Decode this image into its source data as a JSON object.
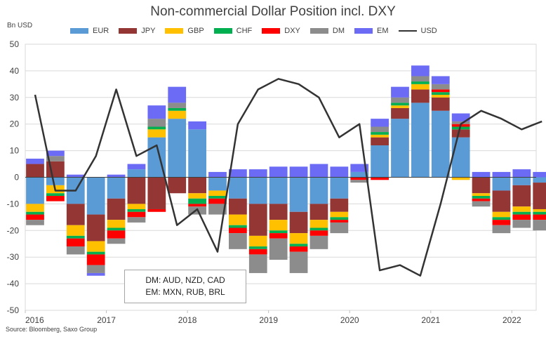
{
  "title": "Non-commercial Dollar Position incl. DXY",
  "unit_label": "Bn USD",
  "source": "Source: Bloomberg, Saxo Group",
  "note_lines": [
    "DM: AUD, NZD, CAD",
    "EM: MXN, RUB, BRL"
  ],
  "colors": {
    "EUR": "#5b9bd5",
    "JPY": "#943634",
    "GBP": "#ffc000",
    "CHF": "#00b050",
    "DXY": "#ff0000",
    "DM": "#8c8c8c",
    "EM": "#6b6bf5",
    "USD": "#333333"
  },
  "legend": [
    {
      "key": "EUR",
      "label": "EUR",
      "kind": "bar"
    },
    {
      "key": "JPY",
      "label": "JPY",
      "kind": "bar"
    },
    {
      "key": "GBP",
      "label": "GBP",
      "kind": "bar"
    },
    {
      "key": "CHF",
      "label": "CHF",
      "kind": "bar"
    },
    {
      "key": "DXY",
      "label": "DXY",
      "kind": "bar"
    },
    {
      "key": "DM",
      "label": "DM",
      "kind": "bar"
    },
    {
      "key": "EM",
      "label": "EM",
      "kind": "bar"
    },
    {
      "key": "USD",
      "label": "USD",
      "kind": "line"
    }
  ],
  "chart_data": {
    "type": "area",
    "title": "Non-commercial Dollar Position incl. DXY",
    "ylabel": "Bn USD",
    "xlabel": "",
    "ylim": [
      -50,
      50
    ],
    "yticks": [
      -50,
      -40,
      -30,
      -20,
      -10,
      0,
      10,
      20,
      30,
      40,
      50
    ],
    "xlim": [
      2016.0,
      2022.3
    ],
    "xticks": [
      2016,
      2017,
      2018,
      2019,
      2020,
      2021,
      2022
    ],
    "grid": "horizontal",
    "legend_position": "top",
    "x": [
      2016.0,
      2016.25,
      2016.5,
      2016.75,
      2017.0,
      2017.25,
      2017.5,
      2017.75,
      2018.0,
      2018.25,
      2018.5,
      2018.75,
      2019.0,
      2019.25,
      2019.5,
      2019.75,
      2020.0,
      2020.25,
      2020.5,
      2020.75,
      2021.0,
      2021.25,
      2021.5,
      2021.75,
      2022.0,
      2022.25
    ],
    "series": [
      {
        "name": "EUR",
        "stack": "bars",
        "values": [
          -10,
          -3,
          -10,
          -14,
          -8,
          3,
          15,
          22,
          18,
          -5,
          -8,
          -10,
          -10,
          -13,
          -10,
          -8,
          2,
          12,
          22,
          28,
          25,
          15,
          0,
          -5,
          -3,
          -2
        ]
      },
      {
        "name": "JPY",
        "stack": "bars",
        "values": [
          5,
          6,
          -8,
          -10,
          -8,
          -10,
          -12,
          -6,
          -6,
          0,
          -6,
          -12,
          -6,
          -8,
          -6,
          -5,
          0,
          3,
          4,
          5,
          5,
          3,
          -6,
          -8,
          -8,
          -10
        ]
      },
      {
        "name": "GBP",
        "stack": "bars",
        "values": [
          -3,
          -3,
          -4,
          -4,
          -3,
          -2,
          3,
          3,
          -2,
          -2,
          -4,
          -4,
          -4,
          -4,
          -3,
          -2,
          0,
          1,
          1,
          2,
          1,
          -1,
          -1,
          -2,
          -2,
          -1
        ]
      },
      {
        "name": "CHF",
        "stack": "bars",
        "values": [
          -1,
          -1,
          -1,
          -1,
          -1,
          -1,
          1,
          1,
          -2,
          -1,
          -1,
          -1,
          -1,
          -1,
          -1,
          -1,
          0,
          1,
          1,
          1,
          1,
          1,
          -1,
          -1,
          -1,
          -1
        ]
      },
      {
        "name": "DXY",
        "stack": "bars",
        "values": [
          -2,
          -2,
          -3,
          -4,
          -3,
          -2,
          -1,
          0,
          -1,
          -2,
          -2,
          -2,
          -2,
          -2,
          -2,
          -1,
          -1,
          -1,
          0,
          0,
          1,
          1,
          -1,
          -2,
          -2,
          -2
        ]
      },
      {
        "name": "DM",
        "stack": "bars",
        "values": [
          -2,
          2,
          -3,
          -3,
          -2,
          -2,
          3,
          2,
          -3,
          -4,
          -6,
          -7,
          -8,
          -8,
          -5,
          -4,
          -1,
          2,
          2,
          2,
          2,
          1,
          -2,
          -3,
          -3,
          -4
        ]
      },
      {
        "name": "EM",
        "stack": "bars",
        "values": [
          2,
          2,
          1,
          -1,
          1,
          2,
          5,
          6,
          3,
          2,
          3,
          3,
          4,
          4,
          5,
          4,
          3,
          3,
          4,
          4,
          3,
          3,
          2,
          2,
          3,
          2
        ]
      },
      {
        "name": "USD",
        "type": "line",
        "values": [
          31,
          -5,
          -5,
          8,
          33,
          8,
          12,
          -18,
          -12,
          -28,
          20,
          33,
          37,
          35,
          30,
          15,
          20,
          -35,
          -33,
          -37,
          -10,
          20,
          25,
          22,
          18,
          21
        ]
      }
    ]
  }
}
